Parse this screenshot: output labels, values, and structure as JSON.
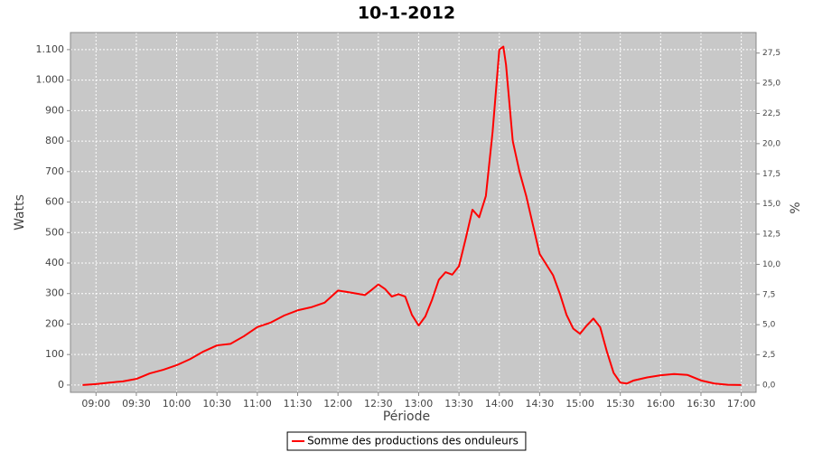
{
  "chart_data": {
    "type": "line",
    "title": "10-1-2012",
    "x_label": "Période",
    "y_label": "Watts",
    "y2_label": "%",
    "x": [
      "08:50",
      "09:00",
      "09:10",
      "09:20",
      "09:30",
      "09:40",
      "09:50",
      "10:00",
      "10:10",
      "10:20",
      "10:30",
      "10:40",
      "10:50",
      "11:00",
      "11:10",
      "11:20",
      "11:30",
      "11:40",
      "11:50",
      "12:00",
      "12:10",
      "12:20",
      "12:25",
      "12:30",
      "12:35",
      "12:40",
      "12:45",
      "12:50",
      "12:55",
      "13:00",
      "13:05",
      "13:10",
      "13:15",
      "13:20",
      "13:25",
      "13:30",
      "13:35",
      "13:40",
      "13:45",
      "13:50",
      "13:55",
      "14:00",
      "14:03",
      "14:05",
      "14:10",
      "14:15",
      "14:20",
      "14:30",
      "14:40",
      "14:45",
      "14:50",
      "14:55",
      "15:00",
      "15:05",
      "15:10",
      "15:15",
      "15:20",
      "15:25",
      "15:30",
      "15:35",
      "15:40",
      "15:50",
      "16:00",
      "16:10",
      "16:20",
      "16:30",
      "16:40",
      "16:50",
      "17:00"
    ],
    "series": [
      {
        "name": "Somme des productions des onduleurs",
        "color": "#ff0000",
        "values": [
          0,
          3,
          8,
          12,
          20,
          38,
          50,
          65,
          85,
          110,
          130,
          135,
          160,
          190,
          205,
          228,
          245,
          255,
          270,
          310,
          303,
          295,
          312,
          330,
          315,
          290,
          298,
          290,
          230,
          195,
          225,
          280,
          345,
          370,
          362,
          390,
          480,
          575,
          550,
          620,
          830,
          1100,
          1110,
          1050,
          800,
          700,
          620,
          430,
          360,
          300,
          230,
          185,
          168,
          195,
          218,
          190,
          110,
          40,
          8,
          5,
          15,
          25,
          32,
          36,
          33,
          15,
          5,
          1,
          0
        ]
      }
    ],
    "xlim": [
      "08:41",
      "17:11"
    ],
    "xticks": [
      "09:00",
      "09:30",
      "10:00",
      "10:30",
      "11:00",
      "11:30",
      "12:00",
      "12:30",
      "13:00",
      "13:30",
      "14:00",
      "14:30",
      "15:00",
      "15:30",
      "16:00",
      "16:30",
      "17:00"
    ],
    "ylim": [
      -24,
      1156
    ],
    "yticks": [
      0,
      100,
      200,
      300,
      400,
      500,
      600,
      700,
      800,
      900,
      {
        "value": 1000,
        "label": "1.000"
      },
      {
        "value": 1100,
        "label": "1.100"
      }
    ],
    "y2lim": [
      -0.6,
      29.2
    ],
    "y2ticks": [
      {
        "value": 0,
        "label": "0,0"
      },
      {
        "value": 2.5,
        "label": "2,5"
      },
      {
        "value": 5,
        "label": "5,0"
      },
      {
        "value": 7.5,
        "label": "7,5"
      },
      {
        "value": 10,
        "label": "10,0"
      },
      {
        "value": 12.5,
        "label": "12,5"
      },
      {
        "value": 15,
        "label": "15,0"
      },
      {
        "value": 17.5,
        "label": "17,5"
      },
      {
        "value": 20,
        "label": "20,0"
      },
      {
        "value": 22.5,
        "label": "22,5"
      },
      {
        "value": 25,
        "label": "25,0"
      },
      {
        "value": 27.5,
        "label": "27,5"
      }
    ],
    "grid": true,
    "plot_background": "#c8c8c8"
  }
}
